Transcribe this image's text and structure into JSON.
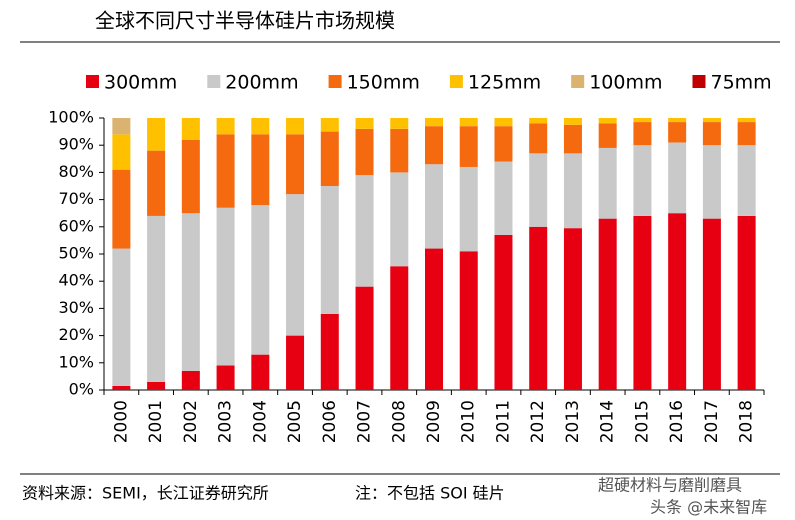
{
  "chart_data": {
    "type": "stacked_bar_percent",
    "title": "全球不同尺寸半导体硅片市场规模",
    "source": "资料来源：SEMI，长江证券研究所",
    "note": "注：不包括 SOI 硅片",
    "watermark": "超硬材料与磨削磨具",
    "watermark2": "头条 @未来智库",
    "categories": [
      "2000",
      "2001",
      "2002",
      "2003",
      "2004",
      "2005",
      "2006",
      "2007",
      "2008",
      "2009",
      "2010",
      "2011",
      "2012",
      "2013",
      "2014",
      "2015",
      "2016",
      "2017",
      "2018"
    ],
    "series": [
      {
        "name": "300mm",
        "color": "#e60012",
        "values": [
          1.5,
          3,
          7,
          9,
          13,
          20,
          28,
          38,
          45.5,
          52,
          51,
          57,
          60,
          59.5,
          63,
          64,
          65,
          63,
          64
        ]
      },
      {
        "name": "200mm",
        "color": "#c9c9c9",
        "values": [
          50.5,
          61,
          58,
          58,
          55,
          52,
          47,
          41,
          34.5,
          31,
          31,
          27,
          27,
          27.5,
          26,
          26,
          26,
          27,
          26
        ]
      },
      {
        "name": "150mm",
        "color": "#f5690f",
        "values": [
          29,
          24,
          27,
          27,
          26,
          22,
          20,
          17,
          16,
          14,
          15,
          13,
          11,
          10.5,
          9,
          8.5,
          7.5,
          8.5,
          8.5
        ]
      },
      {
        "name": "125mm",
        "color": "#ffc000",
        "values": [
          13,
          12,
          8,
          6,
          6,
          6,
          5,
          4,
          4,
          3,
          3,
          3,
          2,
          2.5,
          2,
          1.5,
          1.5,
          1.5,
          1.5
        ]
      },
      {
        "name": "100mm",
        "color": "#d9b36f",
        "values": [
          6,
          0,
          0,
          0,
          0,
          0,
          0,
          0,
          0,
          0,
          0,
          0,
          0,
          0,
          0,
          0,
          0,
          0,
          0
        ]
      },
      {
        "name": "75mm",
        "color": "#c00000",
        "values": [
          0,
          0,
          0,
          0,
          0,
          0,
          0,
          0,
          0,
          0,
          0,
          0,
          0,
          0,
          0,
          0,
          0,
          0,
          0
        ]
      }
    ],
    "ylim": [
      0,
      100
    ],
    "yticks": [
      {
        "value": 0,
        "label": "0%"
      },
      {
        "value": 10,
        "label": "10%"
      },
      {
        "value": 20,
        "label": "20%"
      },
      {
        "value": 30,
        "label": "30%"
      },
      {
        "value": 40,
        "label": "40%"
      },
      {
        "value": 50,
        "label": "50%"
      },
      {
        "value": 60,
        "label": "60%"
      },
      {
        "value": 70,
        "label": "70%"
      },
      {
        "value": 80,
        "label": "80%"
      },
      {
        "value": 90,
        "label": "90%"
      },
      {
        "value": 100,
        "label": "100%"
      }
    ],
    "legend": "top"
  }
}
